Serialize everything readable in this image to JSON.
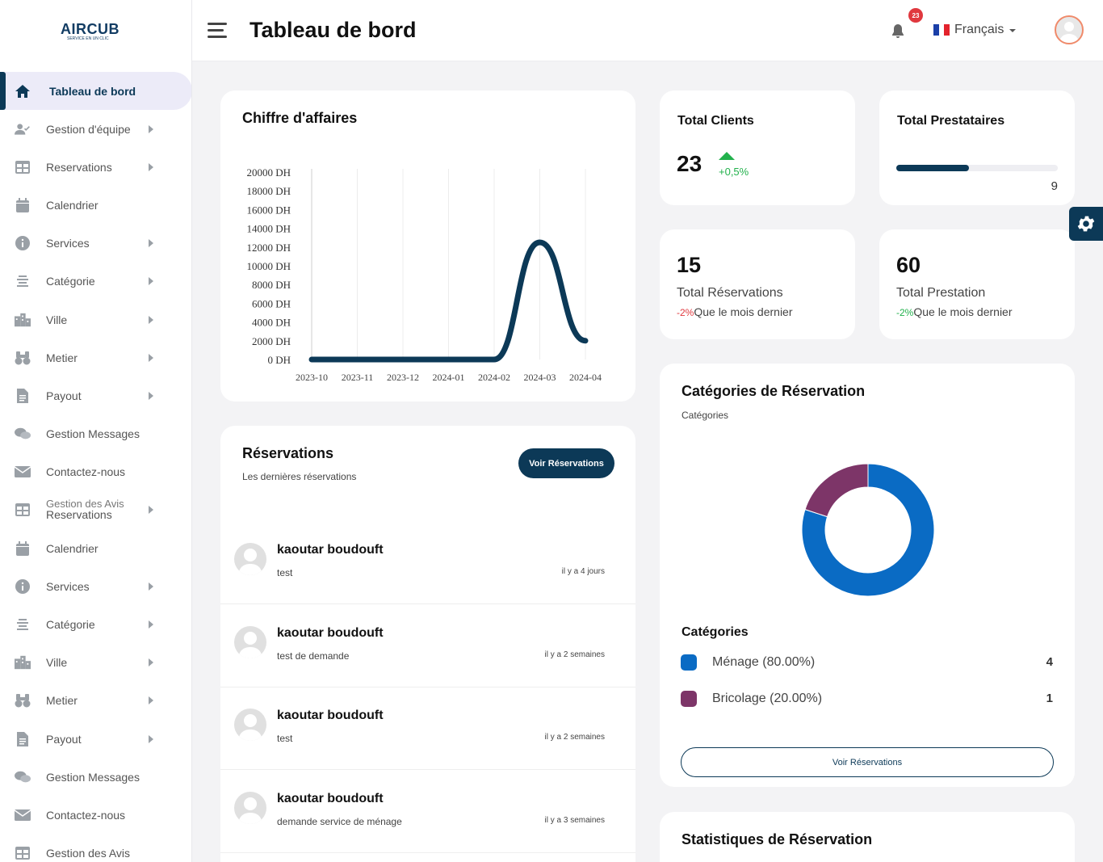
{
  "brand": {
    "name": "AIRCUB",
    "tagline": "SERVICE EN UN CLIC"
  },
  "sidebar": {
    "items": [
      {
        "label": "Tableau de bord",
        "icon": "home-icon",
        "active": true,
        "arrow": false
      },
      {
        "label": "Gestion d'équipe",
        "icon": "user-check-icon",
        "arrow": true
      },
      {
        "label": "Reservations",
        "icon": "table-icon",
        "arrow": true
      },
      {
        "label": "Calendrier",
        "icon": "calendar-icon",
        "arrow": false
      },
      {
        "label": "Services",
        "icon": "info-icon",
        "arrow": true
      },
      {
        "label": "Catégorie",
        "icon": "list-icon",
        "arrow": true
      },
      {
        "label": "Ville",
        "icon": "city-icon",
        "arrow": true
      },
      {
        "label": "Metier",
        "icon": "binoculars-icon",
        "arrow": true
      },
      {
        "label": "Payout",
        "icon": "file-icon",
        "arrow": true
      },
      {
        "label": "Gestion Messages",
        "icon": "chat-icon",
        "arrow": false
      },
      {
        "label": "Contactez-nous",
        "icon": "mail-icon",
        "arrow": false
      },
      {
        "label": "Reservations",
        "icon": "table-icon",
        "arrow": true,
        "ghost": "Gestion des Avis"
      },
      {
        "label": "Calendrier",
        "icon": "calendar-icon",
        "arrow": false
      },
      {
        "label": "Services",
        "icon": "info-icon",
        "arrow": true
      },
      {
        "label": "Catégorie",
        "icon": "list-icon",
        "arrow": true
      },
      {
        "label": "Ville",
        "icon": "city-icon",
        "arrow": true
      },
      {
        "label": "Metier",
        "icon": "binoculars-icon",
        "arrow": true
      },
      {
        "label": "Payout",
        "icon": "file-icon",
        "arrow": true
      },
      {
        "label": "Gestion Messages",
        "icon": "chat-icon",
        "arrow": false
      },
      {
        "label": "Contactez-nous",
        "icon": "mail-icon",
        "arrow": false
      },
      {
        "label": "Gestion des Avis",
        "icon": "table-icon",
        "arrow": false
      }
    ]
  },
  "header": {
    "title": "Tableau de bord",
    "notifications": "23",
    "language": "Français"
  },
  "revenue": {
    "title": "Chiffre d'affaires"
  },
  "chart_data": {
    "type": "line",
    "title": "Chiffre d'affaires",
    "categories": [
      "2023-10",
      "2023-11",
      "2023-12",
      "2024-01",
      "2024-02",
      "2024-03",
      "2024-04"
    ],
    "x": [
      "2023-10",
      "2023-11",
      "2023-12",
      "2024-01",
      "2024-02",
      "2024-03",
      "2024-04"
    ],
    "series": [
      {
        "values": [
          0,
          0,
          0,
          0,
          0,
          12500,
          2000
        ]
      }
    ],
    "y_ticks": [
      "0 DH",
      "2000 DH",
      "4000 DH",
      "6000 DH",
      "8000 DH",
      "10000 DH",
      "12000 DH",
      "14000 DH",
      "16000 DH",
      "18000 DH",
      "20000 DH"
    ],
    "ylim": [
      0,
      20000
    ],
    "grid": "vertical",
    "color": "#0c3957"
  },
  "stats": {
    "clients": {
      "title": "Total Clients",
      "value": "23",
      "change": "+0,5%"
    },
    "prestataires": {
      "title": "Total Prestataires",
      "value": "9",
      "progress": 0.45
    },
    "reservations": {
      "value": "15",
      "label": "Total Réservations",
      "change": "-2%",
      "suffix": "Que le mois dernier"
    },
    "prestation": {
      "value": "60",
      "label": "Total Prestation",
      "change": "-2%",
      "suffix": "Que le mois dernier"
    }
  },
  "reservations_card": {
    "title": "Réservations",
    "subtitle": "Les dernières réservations",
    "button": "Voir Réservations",
    "items": [
      {
        "name": "kaoutar boudouft",
        "desc": "test",
        "time": "il y a 4 jours"
      },
      {
        "name": "kaoutar boudouft",
        "desc": "test de demande",
        "time": "il y a 2 semaines"
      },
      {
        "name": "kaoutar boudouft",
        "desc": "test",
        "time": "il y a 2 semaines"
      },
      {
        "name": "kaoutar boudouft",
        "desc": "demande service de ménage",
        "time": "il y a 3 semaines"
      }
    ]
  },
  "categories_card": {
    "title": "Catégories de Réservation",
    "subtitle": "Catégories",
    "legend_title": "Catégories",
    "button": "Voir Réservations",
    "items": [
      {
        "label": "Ménage (80.00%)",
        "count": "4",
        "color": "#0a6bc4",
        "value": 80
      },
      {
        "label": "Bricolage (20.00%)",
        "count": "1",
        "color": "#7d3568",
        "value": 20
      }
    ]
  },
  "stats_card": {
    "title": "Statistiques de Réservation"
  }
}
